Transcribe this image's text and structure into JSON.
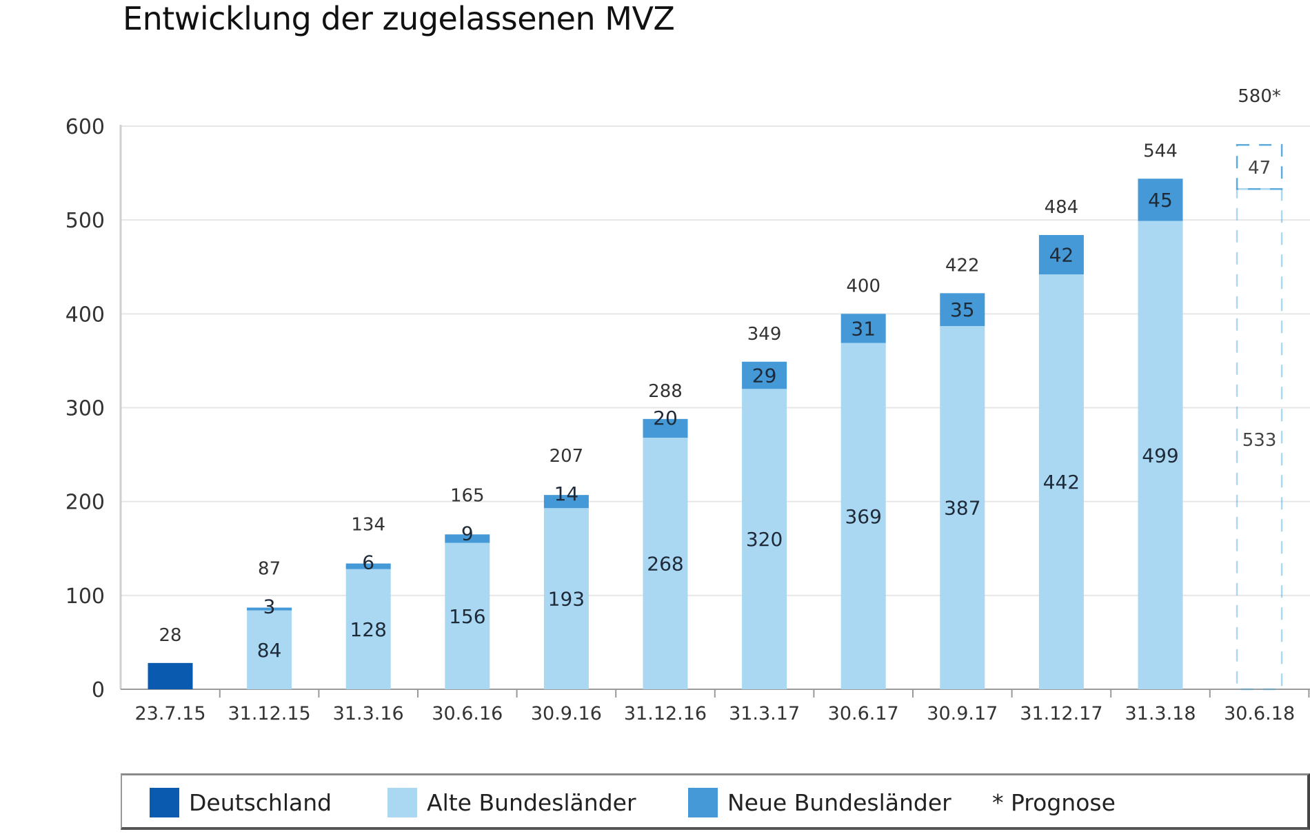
{
  "chart_data": {
    "type": "bar",
    "stacked": true,
    "title": "Entwicklung der zugelassenen MVZ",
    "xlabel": "",
    "ylabel": "",
    "ylim": [
      0,
      600
    ],
    "yticks": [
      0,
      100,
      200,
      300,
      400,
      500,
      600
    ],
    "grid": true,
    "legend_placement": "bottom",
    "categories": [
      "23.7.15",
      "31.12.15",
      "31.3.16",
      "30.6.16",
      "30.9.16",
      "31.12.16",
      "31.3.17",
      "30.6.17",
      "30.9.17",
      "31.12.17",
      "31.3.18",
      "30.6.18"
    ],
    "series": [
      {
        "name": "Deutschland",
        "color": "#0a5bb0",
        "values": [
          28,
          null,
          null,
          null,
          null,
          null,
          null,
          null,
          null,
          null,
          null,
          null
        ]
      },
      {
        "name": "Alte Bundesländer",
        "color": "#aad8f2",
        "values": [
          null,
          84,
          128,
          156,
          193,
          268,
          320,
          369,
          387,
          442,
          499,
          533
        ]
      },
      {
        "name": "Neue Bundesländer",
        "color": "#4499d6",
        "values": [
          null,
          3,
          6,
          9,
          14,
          20,
          29,
          31,
          35,
          42,
          45,
          47
        ]
      }
    ],
    "totals": [
      "28",
      "87",
      "134",
      "165",
      "207",
      "288",
      "349",
      "400",
      "422",
      "484",
      "544",
      "580*"
    ],
    "forecast_categories": [
      "30.6.18"
    ],
    "forecast_style": "dashed outline",
    "forecast_color": "#4aa3dc",
    "annotations": [
      "* Prognose"
    ]
  },
  "legend": {
    "items": [
      {
        "label": "Deutschland",
        "color": "#0a5bb0"
      },
      {
        "label": "Alte Bundesländer",
        "color": "#aad8f2"
      },
      {
        "label": "Neue Bundesländer",
        "color": "#4499d6"
      },
      {
        "label": "* Prognose",
        "color": null
      }
    ]
  }
}
